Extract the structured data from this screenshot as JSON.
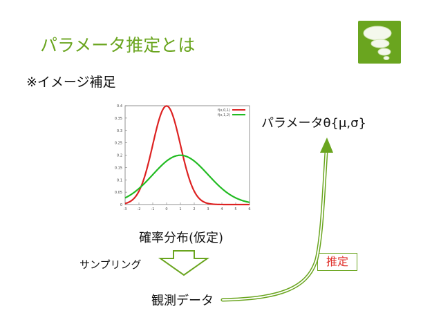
{
  "slide": {
    "title": "パラメータ推定とは",
    "note": "※イメージ補足",
    "parameter_label": "パラメータθ{μ,σ}",
    "distribution_label": "確率分布(仮定)",
    "sampling_label": "サンプリング",
    "observed_label": "観測データ",
    "estimate_label": "推定"
  },
  "colors": {
    "accent": "#6aa51f",
    "red_curve": "#dd2222",
    "green_curve": "#22bb22",
    "estimate_text": "#e0312c"
  },
  "icons": {
    "logo": "speech-bubbles-icon",
    "down_arrow": "hollow-down-arrow",
    "curved_arrow": "curved-up-arrow"
  },
  "chart_data": {
    "type": "line",
    "xlim": [
      -3,
      6
    ],
    "ylim": [
      0,
      0.4
    ],
    "x_ticks": [
      "-3",
      "-2",
      "-1",
      "0",
      "1",
      "2",
      "3",
      "4",
      "5",
      "6"
    ],
    "y_ticks": [
      "0",
      "0.05",
      "0.1",
      "0.15",
      "0.2",
      "0.25",
      "0.3",
      "0.35",
      "0.4"
    ],
    "legend": "top-right",
    "series": [
      {
        "name": "f(x,0,1)",
        "mu": 0,
        "sigma": 1,
        "color": "#dd2222"
      },
      {
        "name": "f(x,1,2)",
        "mu": 1,
        "sigma": 2,
        "color": "#22bb22"
      }
    ]
  }
}
